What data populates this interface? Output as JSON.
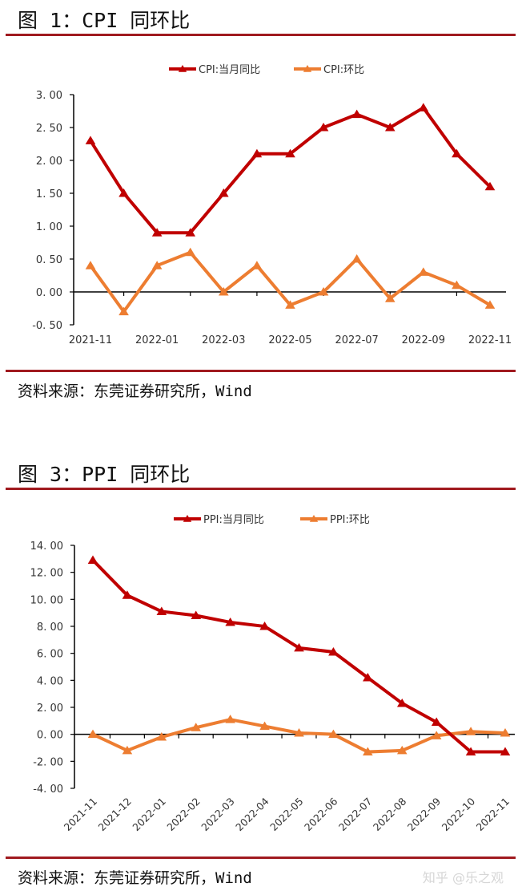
{
  "figures": [
    {
      "title": "图 1：CPI 同环比",
      "source": "资料来源：东莞证券研究所，Wind"
    },
    {
      "title": "图 3：PPI 同环比",
      "source": "资料来源：东莞证券研究所，Wind"
    }
  ],
  "watermark": "知乎 @乐之观",
  "colors": {
    "rule": "#a01a1f",
    "yoy": "#c00000",
    "mom": "#ed7d31",
    "axis": "#000000"
  },
  "chart_data": [
    {
      "type": "line",
      "title": "CPI 同环比",
      "xlabel": "",
      "ylabel": "",
      "ylim": [
        -0.5,
        3.0
      ],
      "yticks": [
        "3.00",
        "2.50",
        "2.00",
        "1.50",
        "1.00",
        "0.50",
        "0.00",
        "-0.50"
      ],
      "grid": false,
      "legend_position": "top",
      "x": [
        "2021-11",
        "2021-12",
        "2022-01",
        "2022-02",
        "2022-03",
        "2022-04",
        "2022-05",
        "2022-06",
        "2022-07",
        "2022-08",
        "2022-09",
        "2022-10",
        "2022-11"
      ],
      "xtick_labels": [
        "2021-11",
        "2022-01",
        "2022-03",
        "2022-05",
        "2022-07",
        "2022-09",
        "2022-11"
      ],
      "series": [
        {
          "name": "CPI:当月同比",
          "values": [
            2.3,
            1.5,
            0.9,
            0.9,
            1.5,
            2.1,
            2.1,
            2.5,
            2.7,
            2.5,
            2.8,
            2.1,
            1.6
          ]
        },
        {
          "name": "CPI:环比",
          "values": [
            0.4,
            -0.3,
            0.4,
            0.6,
            0.0,
            0.4,
            -0.2,
            0.0,
            0.5,
            -0.1,
            0.3,
            0.1,
            -0.2
          ]
        }
      ]
    },
    {
      "type": "line",
      "title": "PPI 同环比",
      "xlabel": "",
      "ylabel": "",
      "ylim": [
        -4.0,
        14.0
      ],
      "yticks": [
        "14.00",
        "12.00",
        "10.00",
        "8.00",
        "6.00",
        "4.00",
        "2.00",
        "0.00",
        "-2.00",
        "-4.00"
      ],
      "grid": false,
      "legend_position": "top",
      "x": [
        "2021-11",
        "2021-12",
        "2022-01",
        "2022-02",
        "2022-03",
        "2022-04",
        "2022-05",
        "2022-06",
        "2022-07",
        "2022-08",
        "2022-09",
        "2022-10",
        "2022-11"
      ],
      "xtick_labels": [
        "2021-11",
        "2021-12",
        "2022-01",
        "2022-02",
        "2022-03",
        "2022-04",
        "2022-05",
        "2022-06",
        "2022-07",
        "2022-08",
        "2022-09",
        "2022-10",
        "2022-11"
      ],
      "series": [
        {
          "name": "PPI:当月同比",
          "values": [
            12.9,
            10.3,
            9.1,
            8.8,
            8.3,
            8.0,
            6.4,
            6.1,
            4.2,
            2.3,
            0.9,
            -1.3,
            -1.3
          ]
        },
        {
          "name": "PPI:环比",
          "values": [
            0.0,
            -1.2,
            -0.2,
            0.5,
            1.1,
            0.6,
            0.1,
            0.0,
            -1.3,
            -1.2,
            -0.1,
            0.2,
            0.1
          ]
        }
      ]
    }
  ]
}
